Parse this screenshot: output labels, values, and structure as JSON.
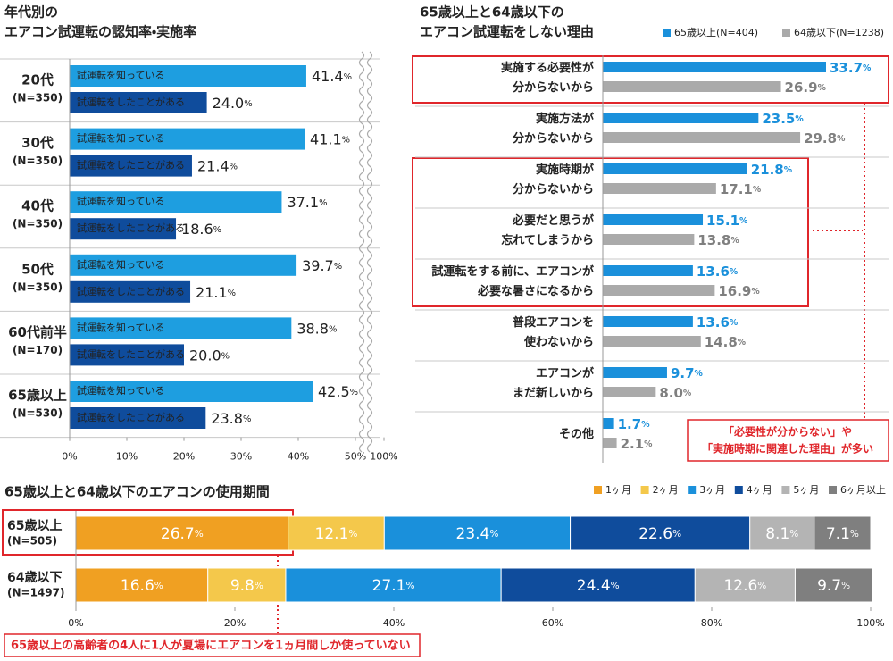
{
  "chart_data": [
    {
      "type": "bar",
      "title": [
        "年代別の",
        "エアコン試運転の認知率・実施率"
      ],
      "categories": [
        "20代",
        "30代",
        "40代",
        "50代",
        "60代前半",
        "65歳以上"
      ],
      "sample_sizes": [
        "(N=350)",
        "(N=350)",
        "(N=350)",
        "(N=350)",
        "(N=170)",
        "(N=530)"
      ],
      "series": [
        {
          "name": "試運転を知っている",
          "color": "#1e9ee0",
          "values": [
            41.4,
            41.1,
            37.1,
            39.7,
            38.8,
            42.5
          ],
          "value_labels": [
            "41.4%",
            "41.1%",
            "37.1%",
            "39.7%",
            "38.8%",
            "42.5%"
          ]
        },
        {
          "name": "試運転をしたことがある",
          "color": "#0f4c9c",
          "values": [
            24.0,
            21.4,
            18.6,
            21.1,
            20.0,
            23.8
          ],
          "value_labels": [
            "24.0%",
            "21.4%",
            "18.6%",
            "21.1%",
            "20.0%",
            "23.8%"
          ]
        }
      ],
      "xlim": [
        0,
        100
      ],
      "axis_break": [
        50,
        100
      ],
      "xticks": [
        {
          "value": 0,
          "label": "0%"
        },
        {
          "value": 10,
          "label": "10%"
        },
        {
          "value": 20,
          "label": "20%"
        },
        {
          "value": 30,
          "label": "30%"
        },
        {
          "value": 40,
          "label": "40%"
        },
        {
          "value": 50,
          "label": "50%"
        },
        {
          "value": 100,
          "label": "100%"
        }
      ]
    },
    {
      "type": "bar",
      "title": [
        "65歳以上と64歳以下の",
        "エアコン試運転をしない理由"
      ],
      "categories": [
        [
          "実施する必要性が",
          "分からないから"
        ],
        [
          "実施方法が",
          "分からないから"
        ],
        [
          "実施時期が",
          "分からないから"
        ],
        [
          "必要だと思うが",
          "忘れてしまうから"
        ],
        [
          "試運転をする前に、エアコンが",
          "必要な暑さになるから"
        ],
        [
          "普段エアコンを",
          "使わないから"
        ],
        [
          "エアコンが",
          "まだ新しいから"
        ],
        [
          "その他"
        ]
      ],
      "legend": "top-right",
      "series": [
        {
          "name": "65歳以上(N=404)",
          "color": "#1a90db",
          "label_color": "#1a90db",
          "values": [
            33.7,
            23.5,
            21.8,
            15.1,
            13.6,
            13.6,
            9.7,
            1.7
          ],
          "value_labels": [
            "33.7%",
            "23.5%",
            "21.8%",
            "15.1%",
            "13.6%",
            "13.6%",
            "9.7%",
            "1.7%"
          ]
        },
        {
          "name": "64歳以下(N=1238)",
          "color": "#aaaaaa",
          "label_color": "#7f7f7f",
          "values": [
            26.9,
            29.8,
            17.1,
            13.8,
            16.9,
            14.8,
            8.0,
            2.1
          ],
          "value_labels": [
            "26.9%",
            "29.8%",
            "17.1%",
            "13.8%",
            "16.9%",
            "14.8%",
            "8.0%",
            "2.1%"
          ]
        }
      ],
      "annotation": [
        "「必要性が分からない」や",
        "「実施時期に関連した理由」が多い"
      ]
    },
    {
      "type": "stacked_bar",
      "title": "65歳以上と64歳以下のエアコンの使用期間",
      "categories": [
        "65歳以上",
        "64歳以下"
      ],
      "sample_sizes": [
        "(N=505)",
        "(N=1497)"
      ],
      "legend": "top-right",
      "series": [
        {
          "name": "1ヶ月",
          "color": "#f0a022",
          "values": [
            26.7,
            16.6
          ],
          "value_labels": [
            "26.7%",
            "16.6%"
          ]
        },
        {
          "name": "2ヶ月",
          "color": "#f4c84b",
          "values": [
            12.1,
            9.8
          ],
          "value_labels": [
            "12.1%",
            "9.8%"
          ]
        },
        {
          "name": "3ヶ月",
          "color": "#1a90db",
          "values": [
            23.4,
            27.1
          ],
          "value_labels": [
            "23.4%",
            "27.1%"
          ]
        },
        {
          "name": "4ヶ月",
          "color": "#0f4c9c",
          "values": [
            22.6,
            24.4
          ],
          "value_labels": [
            "22.6%",
            "24.4%"
          ]
        },
        {
          "name": "5ヶ月",
          "color": "#b4b4b4",
          "values": [
            8.1,
            12.6
          ],
          "value_labels": [
            "8.1%",
            "12.6%"
          ]
        },
        {
          "name": "6ヶ月以上",
          "color": "#7f7f7f",
          "values": [
            7.1,
            9.7
          ],
          "value_labels": [
            "7.1%",
            "9.7%"
          ]
        }
      ],
      "xlim": [
        0,
        100
      ],
      "xticks": [
        {
          "value": 0,
          "label": "0%"
        },
        {
          "value": 20,
          "label": "20%"
        },
        {
          "value": 40,
          "label": "40%"
        },
        {
          "value": 60,
          "label": "60%"
        },
        {
          "value": 80,
          "label": "80%"
        },
        {
          "value": 100,
          "label": "100%"
        }
      ],
      "annotation": "65歳以上の高齢者の4人に1人が夏場にエアコンを1ヵ月間しか使っていない"
    }
  ]
}
